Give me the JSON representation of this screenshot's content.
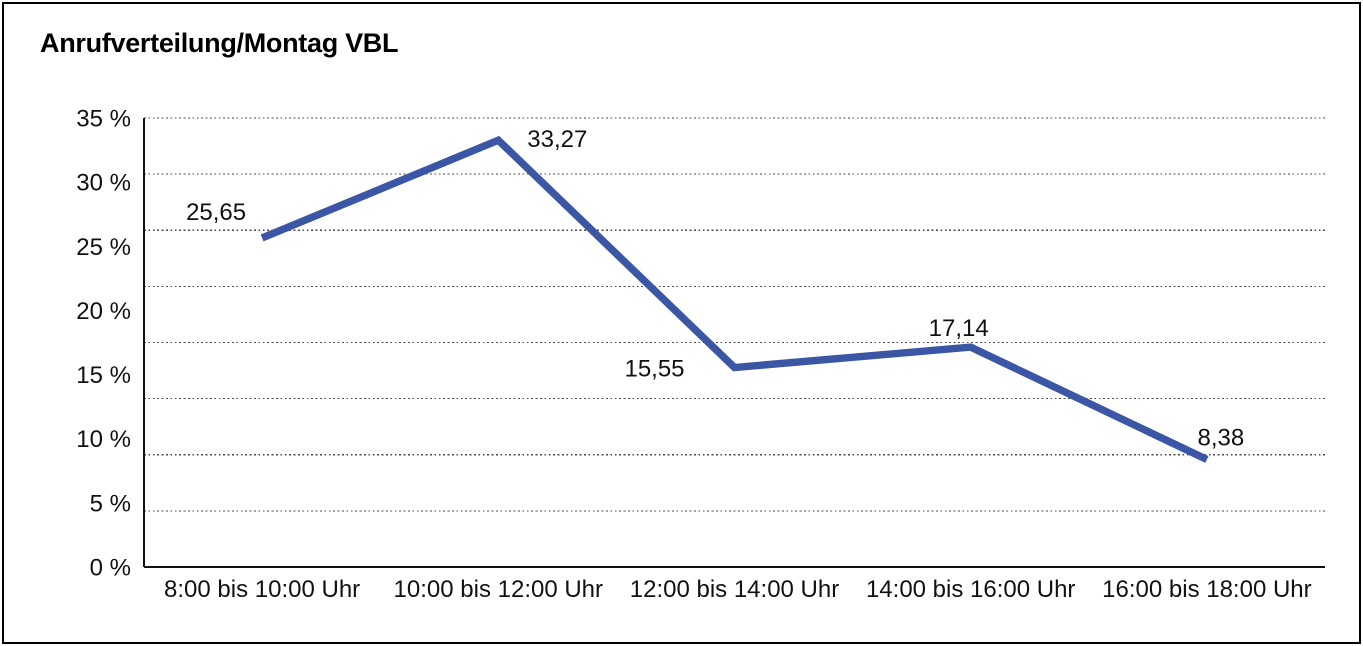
{
  "frame": {
    "border_color": "#000000",
    "background_color": "#ffffff"
  },
  "chart_data": {
    "type": "line",
    "title": "Anrufverteilung/Montag VBL",
    "categories": [
      "8:00 bis 10:00 Uhr",
      "10:00 bis 12:00 Uhr",
      "12:00 bis 14:00 Uhr",
      "14:00 bis 16:00 Uhr",
      "16:00 bis 18:00 Uhr"
    ],
    "series": [
      {
        "values": [
          25.65,
          33.27,
          15.55,
          17.14,
          8.38
        ],
        "value_labels": [
          "25,65",
          "33,27",
          "15,55",
          "17,14",
          "8,38"
        ],
        "color": "#3A56A4"
      }
    ],
    "y_ticks": [
      "0 %",
      "5 %",
      "10 %",
      "15 %",
      "20 %",
      "25 %",
      "30 %",
      "35 %"
    ],
    "ylim": [
      0,
      35
    ],
    "xlabel": "",
    "ylabel": "",
    "grid": "horizontal-dotted",
    "gridline_count": 9,
    "legend": "none",
    "axis_color": "#111111",
    "gridline_color": "#4a4a4a",
    "label_color": "#111111"
  }
}
